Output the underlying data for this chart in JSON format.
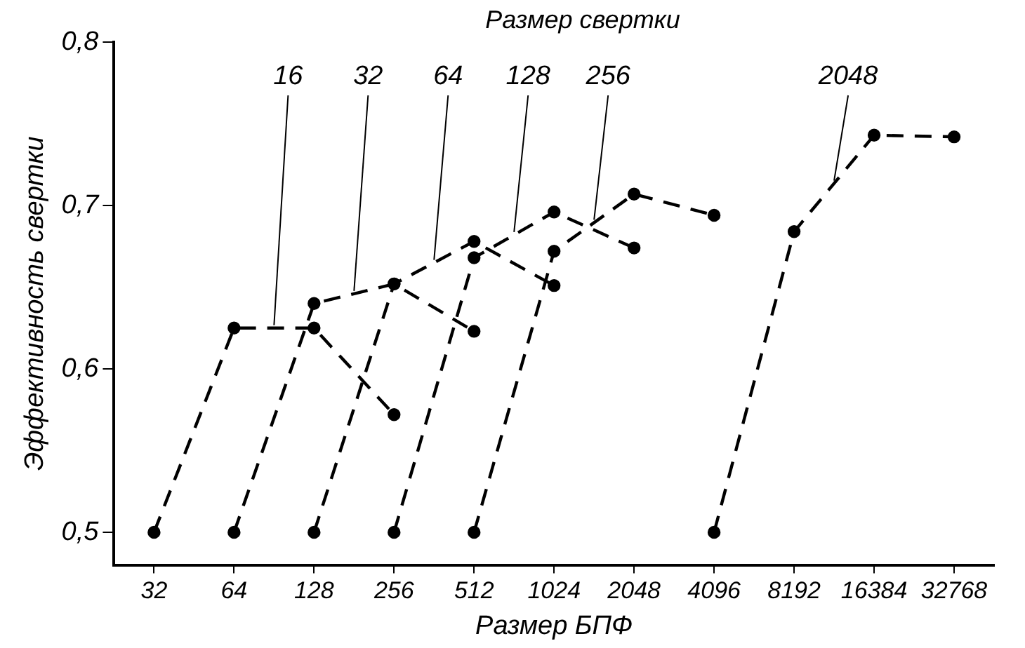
{
  "chart_data": {
    "type": "line",
    "legend_title": "Размер свертки",
    "xlabel": "Размер БПФ",
    "ylabel": "Эффективность свертки",
    "categories": [
      "32",
      "64",
      "128",
      "256",
      "512",
      "1024",
      "2048",
      "4096",
      "8192",
      "16384",
      "32768"
    ],
    "ylim": [
      0.48,
      0.8
    ],
    "yticks": [
      {
        "value": 0.5,
        "label": "0,5"
      },
      {
        "value": 0.6,
        "label": "0,6"
      },
      {
        "value": 0.7,
        "label": "0,7"
      },
      {
        "value": 0.8,
        "label": "0,8"
      }
    ],
    "grid": false,
    "legend": false,
    "marker": "circle",
    "line_style": "dashed",
    "series": [
      {
        "name": "16",
        "color": "#000000",
        "values": [
          0.5,
          0.625,
          0.625,
          0.572,
          null,
          null,
          null,
          null,
          null,
          null,
          null
        ]
      },
      {
        "name": "32",
        "color": "#000000",
        "values": [
          null,
          0.5,
          0.64,
          0.652,
          0.623,
          null,
          null,
          null,
          null,
          null,
          null
        ]
      },
      {
        "name": "64",
        "color": "#000000",
        "values": [
          null,
          null,
          0.5,
          0.652,
          0.678,
          0.651,
          null,
          null,
          null,
          null,
          null
        ]
      },
      {
        "name": "128",
        "color": "#000000",
        "values": [
          null,
          null,
          null,
          0.5,
          0.668,
          0.696,
          0.674,
          null,
          null,
          null,
          null
        ]
      },
      {
        "name": "256",
        "color": "#000000",
        "values": [
          null,
          null,
          null,
          null,
          0.5,
          0.672,
          0.707,
          0.694,
          null,
          null,
          null
        ]
      },
      {
        "name": "2048",
        "color": "#000000",
        "values": [
          null,
          null,
          null,
          null,
          null,
          null,
          null,
          0.5,
          0.684,
          0.743,
          0.742
        ]
      }
    ]
  }
}
